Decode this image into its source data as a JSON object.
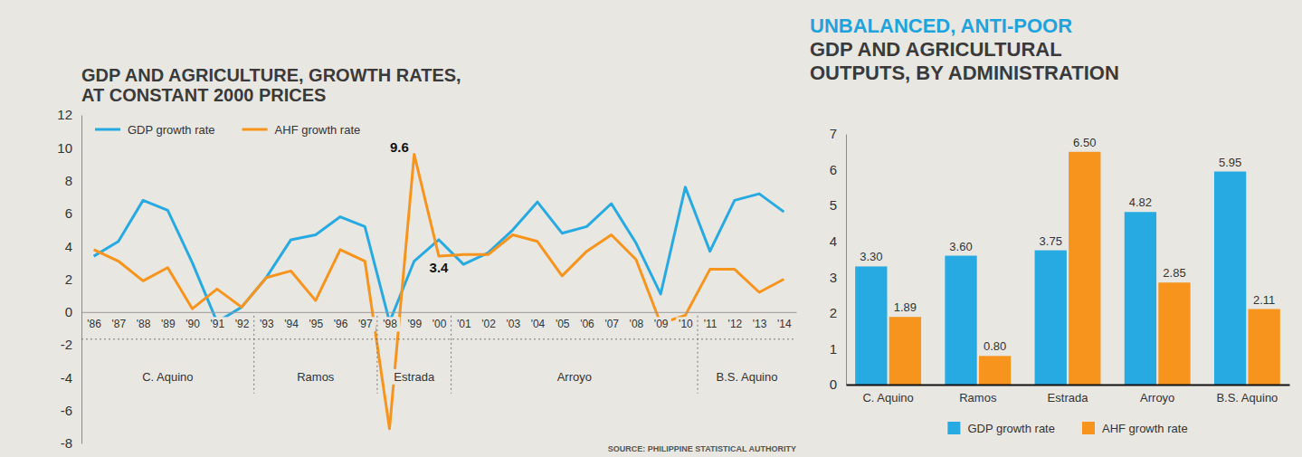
{
  "chart_data": [
    {
      "type": "line",
      "title": "GDP AND AGRICULTURE, GROWTH RATES, AT CONSTANT 2000 PRICES",
      "categories": [
        "'86",
        "'87",
        "'88",
        "'89",
        "'90",
        "'91",
        "'92",
        "'93",
        "'94",
        "'95",
        "'96",
        "'97",
        "'98",
        "'99",
        "'00",
        "'01",
        "'02",
        "'03",
        "'04",
        "'05",
        "'06",
        "'07",
        "'08",
        "'09",
        "'10",
        "'11",
        "'12",
        "'13",
        "'14"
      ],
      "series": [
        {
          "name": "GDP growth rate",
          "color": "#27aae1",
          "values": [
            3.4,
            4.3,
            6.8,
            6.2,
            3.0,
            -0.6,
            0.3,
            2.1,
            4.4,
            4.7,
            5.8,
            5.2,
            -0.6,
            3.1,
            4.4,
            2.9,
            3.6,
            5.0,
            6.7,
            4.8,
            5.2,
            6.6,
            4.2,
            1.1,
            7.6,
            3.7,
            6.8,
            7.2,
            6.1
          ]
        },
        {
          "name": "AHF growth rate",
          "color": "#f7941d",
          "values": [
            3.8,
            3.1,
            1.9,
            2.7,
            0.2,
            1.4,
            0.3,
            2.1,
            2.5,
            0.7,
            3.8,
            3.1,
            -7.1,
            9.6,
            3.4,
            3.5,
            3.5,
            4.7,
            4.3,
            2.2,
            3.7,
            4.7,
            3.2,
            -0.7,
            -0.2,
            2.6,
            2.6,
            1.2,
            2.0
          ]
        }
      ],
      "ylim": [
        -8,
        12
      ],
      "yticks": [
        -8,
        -6,
        -4,
        -2,
        0,
        2,
        4,
        6,
        8,
        10,
        12
      ],
      "annotations": [
        {
          "text": "9.6",
          "x": "'99",
          "y": 9.6
        },
        {
          "text": "3.4",
          "x": "'00",
          "y": 3.4
        }
      ],
      "groups": [
        {
          "label": "C. Aquino",
          "from": "'86",
          "to": "'92"
        },
        {
          "label": "Ramos",
          "from": "'93",
          "to": "'97"
        },
        {
          "label": "Estrada",
          "from": "'98",
          "to": "'00"
        },
        {
          "label": "Arroyo",
          "from": "'01",
          "to": "'10"
        },
        {
          "label": "B.S. Aquino",
          "from": "'11",
          "to": "'14"
        }
      ],
      "source": "SOURCE: PHILIPPINE STATISTICAL AUTHORITY",
      "legend": "top-left",
      "grid": false
    },
    {
      "type": "bar",
      "title": "UNBALANCED, ANTI-POOR",
      "subtitle": "GDP AND AGRICULTURAL OUTPUTS, BY ADMINISTRATION",
      "categories": [
        "C. Aquino",
        "Ramos",
        "Estrada",
        "Arroyo",
        "B.S. Aquino"
      ],
      "series": [
        {
          "name": "GDP growth rate",
          "color": "#27aae1",
          "values": [
            3.3,
            3.6,
            3.75,
            4.82,
            5.95
          ],
          "value_labels": [
            "3.30",
            "3.60",
            "3.75",
            "4.82",
            "5.95"
          ]
        },
        {
          "name": "AHF growth rate",
          "color": "#f7941d",
          "values": [
            1.89,
            0.8,
            6.5,
            2.85,
            2.11
          ],
          "value_labels": [
            "1.89",
            "0.80",
            "6.50",
            "2.85",
            "2.11"
          ]
        }
      ],
      "ylim": [
        0,
        7
      ],
      "yticks": [
        0,
        1,
        2,
        3,
        4,
        5,
        6,
        7
      ],
      "legend": "bottom",
      "data_labels": true,
      "grid": false
    }
  ]
}
